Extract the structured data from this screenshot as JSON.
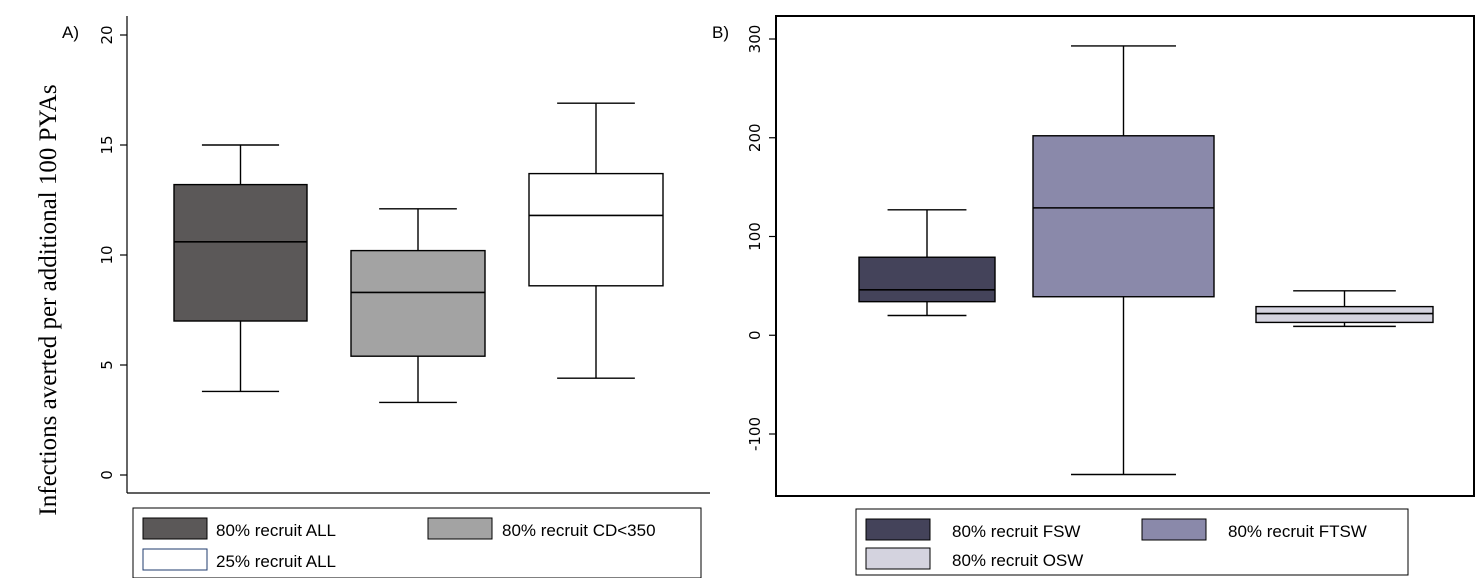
{
  "chart_data": {
    "ylabel": "Infections averted per additional 100 PYAs",
    "panels": [
      {
        "type": "box",
        "label": "A)",
        "ylim": [
          0,
          20
        ],
        "yticks": [
          0,
          5,
          10,
          15,
          20
        ],
        "grid": false,
        "series": [
          {
            "name": "80% recruit ALL",
            "color": "#5b5858",
            "min": 3.8,
            "q1": 7.0,
            "median": 10.6,
            "q3": 13.2,
            "max": 15.0
          },
          {
            "name": "80% recruit CD<350",
            "color": "#a3a3a3",
            "min": 3.3,
            "q1": 5.4,
            "median": 8.3,
            "q3": 10.2,
            "max": 12.1
          },
          {
            "name": "25% recruit ALL",
            "color": "#ffffff",
            "min": 4.4,
            "q1": 8.6,
            "median": 11.8,
            "q3": 13.7,
            "max": 16.9
          }
        ],
        "legend": {
          "position": "bottom"
        }
      },
      {
        "type": "box",
        "label": "B)",
        "ylim": [
          -100,
          300
        ],
        "yticks": [
          -100,
          0,
          100,
          200,
          300
        ],
        "grid": false,
        "series": [
          {
            "name": "80% recruit FSW",
            "color": "#44435a",
            "min": 20,
            "q1": 34,
            "median": 46,
            "q3": 79,
            "max": 127
          },
          {
            "name": "80% recruit FTSW",
            "color": "#8a89aa",
            "min": -141,
            "q1": 39,
            "median": 129,
            "q3": 202,
            "max": 293
          },
          {
            "name": "80% recruit OSW",
            "color": "#d4d3df",
            "min": 9,
            "q1": 13,
            "median": 22,
            "q3": 29,
            "max": 45
          }
        ],
        "legend": {
          "position": "bottom"
        }
      }
    ]
  }
}
